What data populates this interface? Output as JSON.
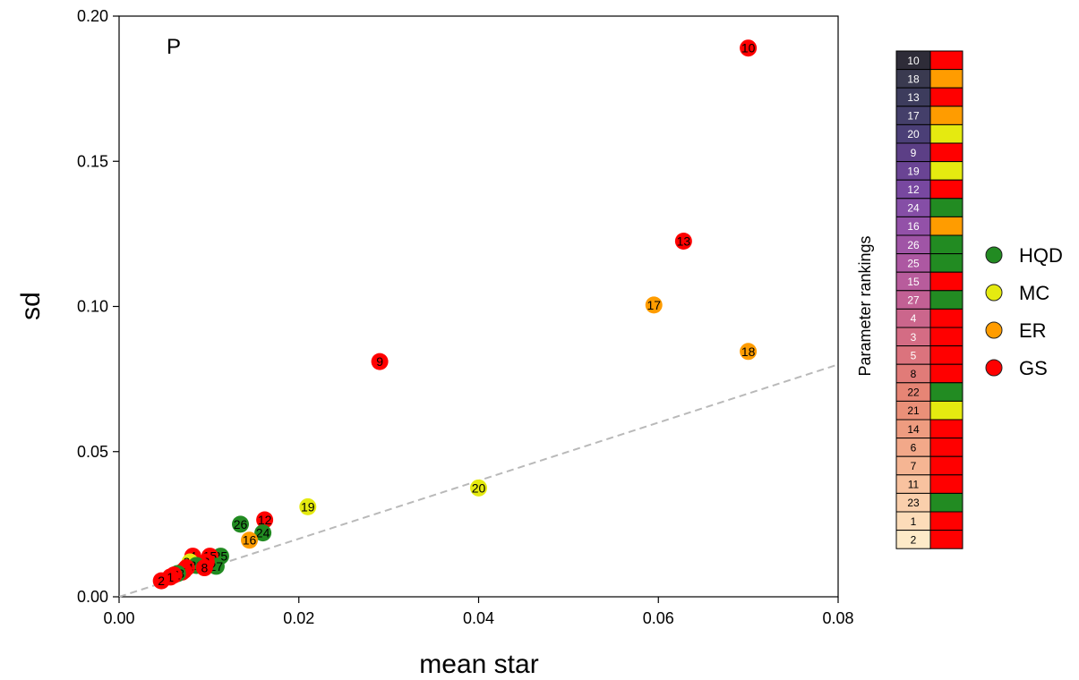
{
  "chart_data": {
    "type": "scatter",
    "panel_label": "P",
    "xlabel": "mean star",
    "ylabel": "sd",
    "xlim": [
      0,
      0.08
    ],
    "ylim": [
      0,
      0.2
    ],
    "x_ticks": [
      "0.00",
      "0.02",
      "0.04",
      "0.06",
      "0.08"
    ],
    "y_ticks": [
      "0.00",
      "0.05",
      "0.10",
      "0.15",
      "0.20"
    ],
    "reference_line": "y = x (dashed, grey)",
    "group_colors": {
      "HQD": "#228b22",
      "MC": "#e5ea10",
      "ER": "#ff9c00",
      "GS": "#ff0000"
    },
    "points": [
      {
        "label": "10",
        "x": 0.07,
        "y": 0.189,
        "group": "GS"
      },
      {
        "label": "13",
        "x": 0.0628,
        "y": 0.1225,
        "group": "GS"
      },
      {
        "label": "17",
        "x": 0.0595,
        "y": 0.1005,
        "group": "ER"
      },
      {
        "label": "18",
        "x": 0.07,
        "y": 0.0845,
        "group": "ER"
      },
      {
        "label": "9",
        "x": 0.029,
        "y": 0.081,
        "group": "GS"
      },
      {
        "label": "20",
        "x": 0.04,
        "y": 0.0375,
        "group": "MC"
      },
      {
        "label": "19",
        "x": 0.021,
        "y": 0.031,
        "group": "MC"
      },
      {
        "label": "12",
        "x": 0.0162,
        "y": 0.0265,
        "group": "GS"
      },
      {
        "label": "26",
        "x": 0.0135,
        "y": 0.025,
        "group": "HQD"
      },
      {
        "label": "24",
        "x": 0.016,
        "y": 0.022,
        "group": "HQD"
      },
      {
        "label": "16",
        "x": 0.0145,
        "y": 0.0195,
        "group": "ER"
      },
      {
        "label": "25",
        "x": 0.0113,
        "y": 0.014,
        "group": "HQD"
      },
      {
        "label": "15",
        "x": 0.0101,
        "y": 0.014,
        "group": "GS"
      },
      {
        "label": "27",
        "x": 0.0108,
        "y": 0.0105,
        "group": "HQD"
      },
      {
        "label": "4",
        "x": 0.0082,
        "y": 0.014,
        "group": "GS"
      },
      {
        "label": "3",
        "x": 0.0097,
        "y": 0.012,
        "group": "GS"
      },
      {
        "label": "5",
        "x": 0.0089,
        "y": 0.0115,
        "group": "GS"
      },
      {
        "label": "21",
        "x": 0.0079,
        "y": 0.012,
        "group": "MC"
      },
      {
        "label": "22",
        "x": 0.0086,
        "y": 0.0108,
        "group": "HQD"
      },
      {
        "label": "8",
        "x": 0.0095,
        "y": 0.01,
        "group": "GS"
      },
      {
        "label": "14",
        "x": 0.0075,
        "y": 0.01,
        "group": "GS"
      },
      {
        "label": "6",
        "x": 0.0072,
        "y": 0.009,
        "group": "GS"
      },
      {
        "label": "7",
        "x": 0.007,
        "y": 0.0085,
        "group": "GS"
      },
      {
        "label": "23",
        "x": 0.0065,
        "y": 0.008,
        "group": "HQD"
      },
      {
        "label": "11",
        "x": 0.0061,
        "y": 0.0075,
        "group": "GS"
      },
      {
        "label": "1",
        "x": 0.0057,
        "y": 0.0068,
        "group": "GS"
      },
      {
        "label": "2",
        "x": 0.0047,
        "y": 0.0055,
        "group": "GS"
      }
    ],
    "rankings": {
      "title": "Parameter rankings",
      "items": [
        {
          "rank": "10",
          "group": "GS",
          "shade": "#2e2c38"
        },
        {
          "rank": "18",
          "group": "ER",
          "shade": "#3a3a50"
        },
        {
          "rank": "13",
          "group": "GS",
          "shade": "#3d3c5d"
        },
        {
          "rank": "17",
          "group": "ER",
          "shade": "#443f6a"
        },
        {
          "rank": "20",
          "group": "MC",
          "shade": "#4b3f77"
        },
        {
          "rank": "9",
          "group": "GS",
          "shade": "#5c3f86"
        },
        {
          "rank": "19",
          "group": "MC",
          "shade": "#6a4494"
        },
        {
          "rank": "12",
          "group": "GS",
          "shade": "#7848a0"
        },
        {
          "rank": "24",
          "group": "HQD",
          "shade": "#854ea6"
        },
        {
          "rank": "16",
          "group": "ER",
          "shade": "#9351a8"
        },
        {
          "rank": "26",
          "group": "HQD",
          "shade": "#a055a6"
        },
        {
          "rank": "25",
          "group": "HQD",
          "shade": "#ad58a2"
        },
        {
          "rank": "15",
          "group": "GS",
          "shade": "#b85c9c"
        },
        {
          "rank": "27",
          "group": "HQD",
          "shade": "#c26094"
        },
        {
          "rank": "4",
          "group": "GS",
          "shade": "#cb668c"
        },
        {
          "rank": "3",
          "group": "GS",
          "shade": "#d46c84"
        },
        {
          "rank": "5",
          "group": "GS",
          "shade": "#db737d"
        },
        {
          "rank": "8",
          "group": "GS",
          "shade": "#e17b78"
        },
        {
          "rank": "22",
          "group": "HQD",
          "shade": "#e68575"
        },
        {
          "rank": "21",
          "group": "MC",
          "shade": "#ea9078"
        },
        {
          "rank": "14",
          "group": "GS",
          "shade": "#ee9c80"
        },
        {
          "rank": "6",
          "group": "GS",
          "shade": "#f2a889"
        },
        {
          "rank": "7",
          "group": "GS",
          "shade": "#f5b593"
        },
        {
          "rank": "11",
          "group": "GS",
          "shade": "#f8c29f"
        },
        {
          "rank": "23",
          "group": "HQD",
          "shade": "#facfac"
        },
        {
          "rank": "1",
          "group": "GS",
          "shade": "#fcdcb9"
        },
        {
          "rank": "2",
          "group": "GS",
          "shade": "#fdeac8"
        }
      ]
    },
    "legend": {
      "placement": "right",
      "entries": [
        "HQD",
        "MC",
        "ER",
        "GS"
      ]
    }
  }
}
